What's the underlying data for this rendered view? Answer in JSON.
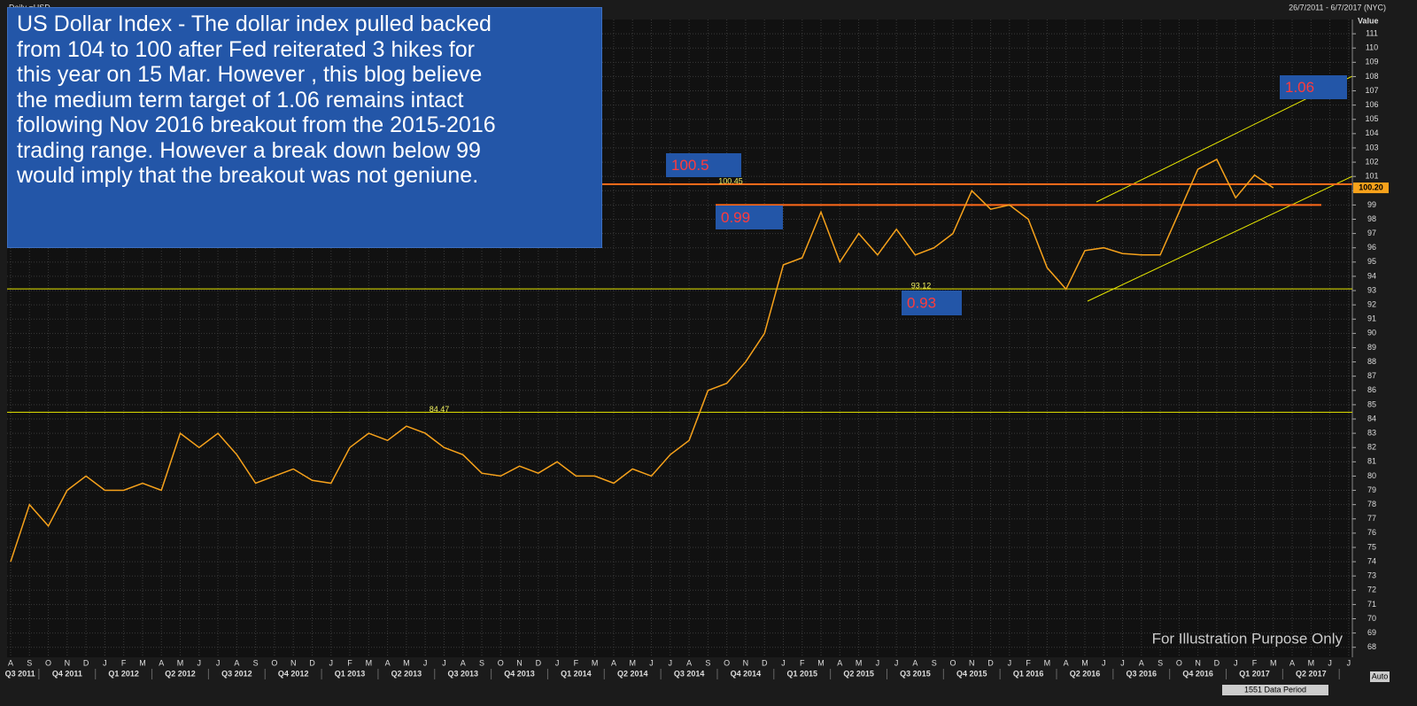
{
  "header": {
    "instrument": "Daily =USD",
    "range": "26/7/2011 - 6/7/2017 (NYC)",
    "axis_title": "Value",
    "last_price": "100.20",
    "period": "1551 Data Period",
    "auto": "Auto"
  },
  "note_lines": [
    "US Dollar Index - The dollar index pulled backed",
    "from 104 to 100 after Fed reiterated 3 hikes for",
    "this year on 15 Mar. However , this blog believe",
    "the medium term target of 1.06 remains intact",
    "following Nov 2016 breakout  from the 2015-2016",
    "trading range. However a break down below 99",
    "would imply that the breakout was not geniune."
  ],
  "watermark": "For Illustration Purpose Only",
  "annotations": [
    "100.5",
    "0.99",
    "0.93",
    "1.06"
  ],
  "chart_data": {
    "type": "line",
    "categories": [
      "A",
      "S",
      "O",
      "N",
      "D",
      "J",
      "F",
      "M",
      "A",
      "M",
      "J",
      "J",
      "A",
      "S",
      "O",
      "N",
      "D",
      "J",
      "F",
      "M",
      "A",
      "M",
      "J",
      "J",
      "A",
      "S",
      "O",
      "N",
      "D",
      "J",
      "F",
      "M",
      "A",
      "M",
      "J",
      "J",
      "A",
      "S",
      "O",
      "N",
      "D",
      "J",
      "F",
      "M",
      "A",
      "M",
      "J",
      "J",
      "A",
      "S",
      "O",
      "N",
      "D",
      "J",
      "F",
      "M",
      "A",
      "M",
      "J",
      "J",
      "A",
      "S",
      "O",
      "N",
      "D",
      "J",
      "F",
      "M",
      "A",
      "M",
      "J",
      "J"
    ],
    "quarters": [
      "Q3 2011",
      "Q4 2011",
      "Q1 2012",
      "Q2 2012",
      "Q3 2012",
      "Q4 2012",
      "Q1 2013",
      "Q2 2013",
      "Q3 2013",
      "Q4 2013",
      "Q1 2014",
      "Q2 2014",
      "Q3 2014",
      "Q4 2014",
      "Q1 2015",
      "Q2 2015",
      "Q3 2015",
      "Q4 2015",
      "Q1 2016",
      "Q2 2016",
      "Q3 2016",
      "Q4 2016",
      "Q1 2017",
      "Q2 2017"
    ],
    "series": [
      {
        "name": "USD",
        "color": "#f7a21b",
        "values": [
          74,
          78,
          76.5,
          79,
          80,
          79,
          79,
          79.5,
          79,
          83,
          82,
          83,
          81.5,
          79.5,
          80,
          80.5,
          79.7,
          79.5,
          82,
          83,
          82.5,
          83.5,
          83,
          82,
          81.5,
          80.2,
          80,
          80.7,
          80.2,
          81,
          80,
          80,
          79.5,
          80.5,
          80,
          81.5,
          82.5,
          86,
          86.5,
          88,
          90,
          94.8,
          95.3,
          98.5,
          95,
          97,
          95.5,
          97.3,
          95.5,
          96,
          97,
          100,
          98.7,
          99,
          98,
          94.6,
          93.1,
          95.8,
          96,
          95.6,
          95.5,
          95.5,
          98.5,
          101.5,
          102.2,
          99.5,
          101.1,
          100.2,
          null,
          null,
          null,
          null
        ]
      }
    ],
    "levels": [
      100.45,
      99,
      93.12,
      84.47
    ],
    "ylim": [
      67.3,
      112
    ],
    "yticks": [
      68,
      69,
      70,
      71,
      72,
      73,
      74,
      75,
      76,
      77,
      78,
      79,
      80,
      81,
      82,
      83,
      84,
      85,
      86,
      87,
      88,
      89,
      90,
      91,
      92,
      93,
      94,
      95,
      96,
      97,
      98,
      99,
      100,
      101,
      102,
      103,
      104,
      105,
      106,
      107,
      108,
      109,
      110,
      111
    ],
    "grid": true
  }
}
